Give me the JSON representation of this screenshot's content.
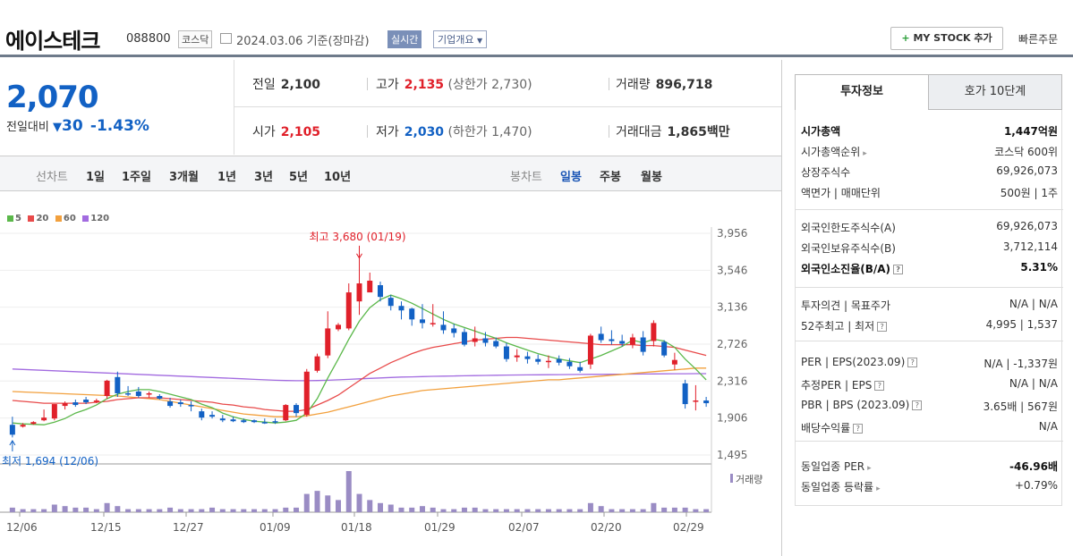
{
  "header": {
    "name": "에이스테크",
    "code": "088800",
    "market": "코스닥",
    "date": "2024.03.06",
    "basis": "기준(장마감)",
    "realtime": "실시간",
    "company_info": "기업개요",
    "mystock": "MY STOCK 추가",
    "quick_order": "빠른주문"
  },
  "price": {
    "current": "2,070",
    "change_label": "전일대비",
    "change": "30",
    "change_pct": "-1.43%"
  },
  "quote": {
    "prev_label": "전일",
    "prev": "2,100",
    "high_label": "고가",
    "high": "2,135",
    "upper_limit": "(상한가 2,730)",
    "volume_label": "거래량",
    "volume": "896,718",
    "open_label": "시가",
    "open": "2,105",
    "low_label": "저가",
    "low": "2,030",
    "lower_limit": "(하한가 1,470)",
    "amount_label": "거래대금",
    "amount": "1,865",
    "amount_unit": "백만"
  },
  "tabs": {
    "line_label": "선차트",
    "line_items": [
      "1일",
      "1주일",
      "3개월",
      "1년",
      "3년",
      "5년",
      "10년"
    ],
    "candle_label": "봉차트",
    "candle_items": [
      "일봉",
      "주봉",
      "월봉"
    ],
    "candle_active": "일봉"
  },
  "chart_data": {
    "type": "candlestick",
    "legend": [
      "5",
      "20",
      "60",
      "120"
    ],
    "legend_colors": [
      "#5bb84a",
      "#e84a4a",
      "#f2a03d",
      "#a26be0"
    ],
    "y_ticks": [
      "3,956",
      "3,546",
      "3,136",
      "2,726",
      "2,316",
      "1,906",
      "1,495"
    ],
    "ylim": [
      1495,
      3956
    ],
    "x_ticks": [
      "12/06",
      "12/15",
      "12/27",
      "01/09",
      "01/18",
      "01/29",
      "02/07",
      "02/20",
      "02/29"
    ],
    "high_annotation": "최고 3,680 (01/19)",
    "low_annotation": "최저 1,694 (12/06)",
    "volume_label": "거래량",
    "candles": [
      [
        1830,
        1920,
        1690,
        1720
      ],
      [
        1810,
        1850,
        1800,
        1830
      ],
      [
        1840,
        1870,
        1830,
        1860
      ],
      [
        1880,
        2000,
        1870,
        1910
      ],
      [
        1900,
        2050,
        1880,
        2060
      ],
      [
        2040,
        2090,
        2000,
        2070
      ],
      [
        2080,
        2110,
        2030,
        2050
      ],
      [
        2110,
        2140,
        2060,
        2080
      ],
      [
        2090,
        2120,
        2070,
        2100
      ],
      [
        2150,
        2330,
        2120,
        2320
      ],
      [
        2360,
        2420,
        2140,
        2180
      ],
      [
        2180,
        2260,
        2150,
        2170
      ],
      [
        2200,
        2250,
        2130,
        2150
      ],
      [
        2170,
        2200,
        2130,
        2180
      ],
      [
        2150,
        2170,
        2110,
        2120
      ],
      [
        2090,
        2130,
        2020,
        2040
      ],
      [
        2080,
        2110,
        2030,
        2060
      ],
      [
        2050,
        2090,
        1980,
        2040
      ],
      [
        1980,
        2010,
        1880,
        1910
      ],
      [
        1940,
        1980,
        1900,
        1920
      ],
      [
        1900,
        1940,
        1860,
        1880
      ],
      [
        1890,
        1920,
        1860,
        1870
      ],
      [
        1880,
        1900,
        1850,
        1860
      ],
      [
        1880,
        1890,
        1850,
        1860
      ],
      [
        1860,
        1900,
        1840,
        1850
      ],
      [
        1870,
        1900,
        1840,
        1860
      ],
      [
        1880,
        2060,
        1870,
        2050
      ],
      [
        2050,
        2070,
        1920,
        1960
      ],
      [
        1940,
        2450,
        1920,
        2420
      ],
      [
        2430,
        2620,
        2410,
        2590
      ],
      [
        2600,
        3090,
        2570,
        2900
      ],
      [
        2890,
        2960,
        2870,
        2940
      ],
      [
        2900,
        3400,
        2880,
        3300
      ],
      [
        3200,
        3680,
        3050,
        3400
      ],
      [
        3300,
        3520,
        3310,
        3430
      ],
      [
        3380,
        3420,
        3200,
        3250
      ],
      [
        3240,
        3270,
        3100,
        3150
      ],
      [
        3150,
        3200,
        3000,
        3100
      ],
      [
        3120,
        3130,
        2930,
        3000
      ],
      [
        3000,
        3170,
        2900,
        2960
      ],
      [
        2950,
        3170,
        2920,
        2960
      ],
      [
        2940,
        3090,
        2840,
        2880
      ],
      [
        2900,
        2950,
        2800,
        2850
      ],
      [
        2860,
        2900,
        2700,
        2720
      ],
      [
        2750,
        2920,
        2700,
        2790
      ],
      [
        2790,
        2860,
        2700,
        2740
      ],
      [
        2760,
        2800,
        2680,
        2700
      ],
      [
        2700,
        2740,
        2530,
        2560
      ],
      [
        2580,
        2670,
        2530,
        2600
      ],
      [
        2590,
        2640,
        2510,
        2560
      ],
      [
        2560,
        2610,
        2500,
        2530
      ],
      [
        2530,
        2600,
        2460,
        2540
      ],
      [
        2560,
        2600,
        2490,
        2520
      ],
      [
        2530,
        2570,
        2450,
        2480
      ],
      [
        2470,
        2530,
        2410,
        2430
      ],
      [
        2500,
        2840,
        2450,
        2820
      ],
      [
        2840,
        2920,
        2740,
        2770
      ],
      [
        2780,
        2880,
        2720,
        2760
      ],
      [
        2760,
        2830,
        2700,
        2730
      ],
      [
        2720,
        2840,
        2680,
        2800
      ],
      [
        2800,
        2870,
        2600,
        2640
      ],
      [
        2760,
        2990,
        2700,
        2960
      ],
      [
        2750,
        2770,
        2580,
        2600
      ],
      [
        2500,
        2630,
        2440,
        2550
      ],
      [
        2290,
        2330,
        2010,
        2060
      ],
      [
        2090,
        2270,
        1990,
        2100
      ],
      [
        2100,
        2140,
        2030,
        2070
      ]
    ],
    "volumes": [
      3,
      2,
      2,
      2,
      5,
      4,
      3,
      3,
      2,
      6,
      4,
      2,
      2,
      2,
      2,
      3,
      2,
      2,
      2,
      3,
      2,
      2,
      2,
      2,
      2,
      2,
      3,
      3,
      12,
      14,
      11,
      8,
      27,
      12,
      8,
      6,
      5,
      3,
      3,
      4,
      3,
      2,
      2,
      3,
      3,
      2,
      2,
      2,
      2,
      2,
      2,
      2,
      2,
      2,
      2,
      6,
      4,
      2,
      2,
      2,
      2,
      6,
      3,
      3,
      3,
      2,
      2
    ],
    "ma5": [
      1850,
      1840,
      1835,
      1830,
      1860,
      1900,
      1960,
      2000,
      2050,
      2120,
      2170,
      2200,
      2220,
      2220,
      2200,
      2170,
      2140,
      2110,
      2060,
      2020,
      1960,
      1920,
      1890,
      1870,
      1860,
      1850,
      1860,
      1880,
      1960,
      2120,
      2350,
      2560,
      2780,
      2980,
      3130,
      3220,
      3270,
      3230,
      3180,
      3120,
      3060,
      3000,
      2950,
      2910,
      2870,
      2830,
      2790,
      2740,
      2700,
      2660,
      2620,
      2590,
      2560,
      2540,
      2520,
      2560,
      2600,
      2650,
      2700,
      2770,
      2740,
      2780,
      2760,
      2690,
      2560,
      2450,
      2330
    ],
    "ma20": [
      2100,
      2090,
      2080,
      2070,
      2070,
      2070,
      2070,
      2070,
      2080,
      2090,
      2110,
      2120,
      2130,
      2130,
      2130,
      2120,
      2110,
      2100,
      2090,
      2080,
      2060,
      2050,
      2030,
      2020,
      2000,
      1990,
      1980,
      1980,
      2000,
      2050,
      2100,
      2160,
      2240,
      2320,
      2400,
      2460,
      2520,
      2570,
      2620,
      2660,
      2690,
      2710,
      2730,
      2750,
      2770,
      2780,
      2790,
      2800,
      2800,
      2790,
      2780,
      2770,
      2760,
      2750,
      2740,
      2730,
      2720,
      2720,
      2720,
      2720,
      2710,
      2710,
      2700,
      2690,
      2660,
      2630,
      2600
    ],
    "ma60": [
      2200,
      2195,
      2190,
      2185,
      2180,
      2175,
      2170,
      2165,
      2160,
      2155,
      2150,
      2140,
      2130,
      2120,
      2110,
      2090,
      2070,
      2050,
      2030,
      2010,
      1990,
      1970,
      1950,
      1940,
      1930,
      1920,
      1920,
      1920,
      1930,
      1950,
      1970,
      2000,
      2030,
      2060,
      2090,
      2120,
      2150,
      2170,
      2190,
      2210,
      2220,
      2230,
      2240,
      2250,
      2260,
      2270,
      2280,
      2290,
      2300,
      2310,
      2320,
      2330,
      2330,
      2340,
      2350,
      2360,
      2370,
      2380,
      2390,
      2400,
      2410,
      2420,
      2430,
      2440,
      2450,
      2460,
      2460
    ],
    "ma120": [
      2450,
      2445,
      2440,
      2435,
      2430,
      2425,
      2420,
      2415,
      2410,
      2405,
      2400,
      2395,
      2390,
      2385,
      2380,
      2375,
      2370,
      2365,
      2360,
      2355,
      2350,
      2345,
      2340,
      2335,
      2330,
      2325,
      2322,
      2320,
      2320,
      2322,
      2325,
      2330,
      2335,
      2340,
      2345,
      2350,
      2355,
      2360,
      2362,
      2365,
      2368,
      2370,
      2372,
      2374,
      2376,
      2378,
      2380,
      2382,
      2383,
      2384,
      2385,
      2386,
      2387,
      2388,
      2389,
      2390,
      2390,
      2391,
      2392,
      2393,
      2394,
      2395,
      2396,
      2397,
      2397,
      2398,
      2398
    ]
  },
  "right": {
    "tab1": "투자정보",
    "tab2": "호가 10단계",
    "rows": {
      "mcap_k": "시가총액",
      "mcap_v": "1,447억원",
      "rank_k": "시가총액순위",
      "rank_v": "코스닥 600위",
      "shares_k": "상장주식수",
      "shares_v": "69,926,073",
      "par_k": "액면가 | 매매단위",
      "par_v": "500원 | 1주",
      "flimit_k": "외국인한도주식수(A)",
      "flimit_v": "69,926,073",
      "fown_k": "외국인보유주식수(B)",
      "fown_v": "3,712,114",
      "fratio_k": "외국인소진율(B/A)",
      "fratio_v": "5.31%",
      "opinion_k": "투자의견 | 목표주가",
      "opinion_v": "N/A | N/A",
      "w52_k": "52주최고 | 최저",
      "w52_v": "4,995 | 1,537",
      "per_k": "PER | EPS(2023.09)",
      "per_v": "N/A | -1,337원",
      "eper_k": "추정PER | EPS",
      "eper_v": "N/A | N/A",
      "pbr_k": "PBR | BPS (2023.09)",
      "pbr_v": "3.65배 | 567원",
      "div_k": "배당수익률",
      "div_v": "N/A",
      "ind_per_k": "동일업종 PER",
      "ind_per_v": "-46.96배",
      "ind_rate_k": "동일업종 등락률",
      "ind_rate_v": "+0.79%"
    }
  }
}
